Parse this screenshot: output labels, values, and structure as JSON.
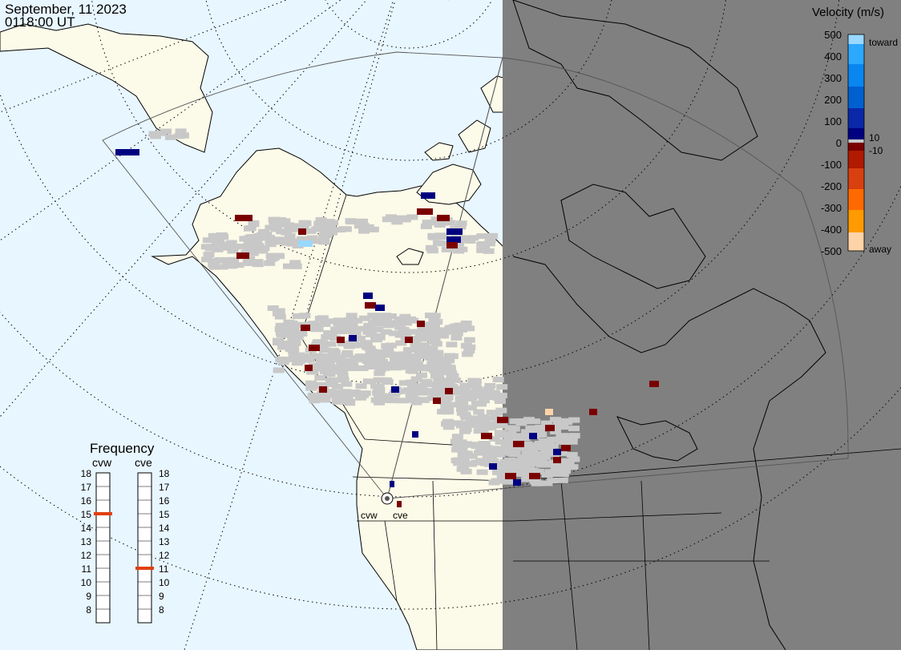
{
  "header": {
    "date": "September, 11 2023",
    "time": "0118:00 UT"
  },
  "velocity_scale": {
    "title": "Velocity (m/s)",
    "tick_labels": [
      "500",
      "400",
      "300",
      "200",
      "100",
      "0",
      "-100",
      "-200",
      "-300",
      "-400",
      "-500"
    ],
    "inner_labels": [
      "10",
      "-10"
    ],
    "toward_label": "toward",
    "away_label": "away",
    "colors": [
      "#ffd3a8",
      "#ff9a00",
      "#ff6a00",
      "#d84010",
      "#b01a00",
      "#7a0000",
      "#c8c8c8",
      "#000080",
      "#0a28a8",
      "#0060d0",
      "#0a86f0",
      "#2ca8ff",
      "#9ad8ff"
    ]
  },
  "frequency_panel": {
    "title": "Frequency",
    "radars": [
      {
        "code": "cvw",
        "frequency_mhz": 15
      },
      {
        "code": "cve",
        "frequency_mhz": 11
      }
    ],
    "ticks": [
      "18",
      "17",
      "16",
      "15",
      "14",
      "13",
      "12",
      "11",
      "10",
      "9",
      "8"
    ]
  },
  "radar_site_labels": [
    "cvw",
    "cve"
  ],
  "map": {
    "ocean_color": "#e8f6ff",
    "land_color": "#fcfae8",
    "night_color": "#808080",
    "ground_scatter_color": "#c8c8c8"
  }
}
